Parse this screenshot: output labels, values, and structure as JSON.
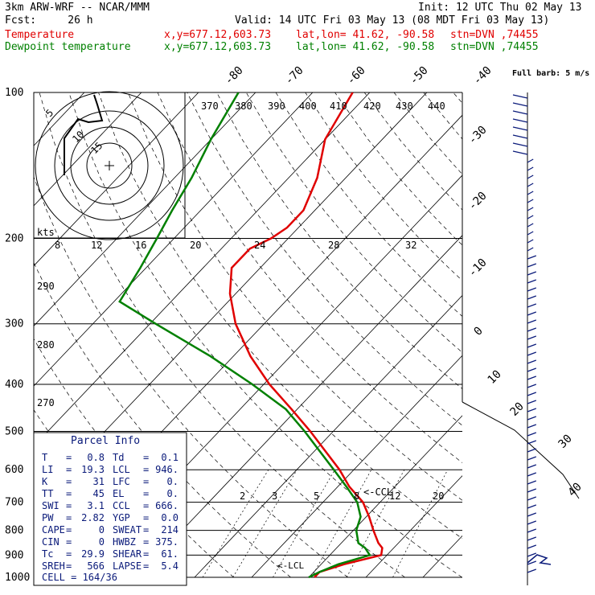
{
  "header": {
    "model": "3km ARW-WRF -- NCAR/MMM",
    "fcst_label": "Fcst:",
    "fcst_value": "26 h",
    "init": "Init: 12 UTC Thu 02 May 13",
    "valid": "Valid: 14 UTC Fri 03 May 13 (08 MDT Fri 03 May 13)",
    "temp_label": "Temperature",
    "dew_label": "Dewpoint temperature",
    "xy": "x,y=677.12,603.73",
    "latlon": "lat,lon= 41.62, -90.58",
    "stn": "stn=DVN ,74455"
  },
  "colors": {
    "temperature": "#e00000",
    "dewpoint": "#008000",
    "barbs": "#0a1a7a",
    "grid": "#000000",
    "dashed": "#000000"
  },
  "chart_data": {
    "type": "line",
    "title": "Skew-T log-P",
    "pressure_levels": [
      100,
      200,
      300,
      400,
      500,
      600,
      700,
      800,
      900,
      1000
    ],
    "isotherm_labels_top": [
      "-80",
      "-70",
      "-60",
      "-50",
      "-40"
    ],
    "isotherm_labels_right": [
      "-30",
      "-20",
      "-10",
      "0",
      "10",
      "20",
      "30",
      "40"
    ],
    "theta_labels": [
      "370",
      "380",
      "390",
      "400",
      "410",
      "420",
      "430",
      "440"
    ],
    "theta_left_labels": [
      "290",
      "280",
      "270"
    ],
    "hodo_speed_labels": [
      "8",
      "12",
      "16",
      "20",
      "24",
      "28",
      "32"
    ],
    "hodo_units": "kts",
    "hodo_ring_labels": [
      "5",
      "10",
      "15"
    ],
    "mixing_ratio_labels": [
      "2",
      "3",
      "5",
      "8",
      "12",
      "20"
    ],
    "barb_legend": "Full barb: 5 m/s",
    "ccl_marker": "<-CCL",
    "lcl_marker": "<-LCL",
    "series": [
      {
        "name": "Temperature",
        "pressure": [
          100,
          125,
          150,
          175,
          190,
          200,
          210,
          230,
          260,
          300,
          350,
          400,
          450,
          500,
          550,
          600,
          650,
          700,
          750,
          800,
          850,
          870,
          900,
          940,
          975,
          1000
        ],
        "temp_c": [
          -63,
          -60,
          -55,
          -52,
          -52,
          -53,
          -55,
          -55,
          -51,
          -45,
          -37,
          -29,
          -21,
          -14,
          -8,
          -2.5,
          2,
          7,
          10.5,
          13.5,
          16.5,
          18,
          19,
          14,
          11,
          11
        ]
      },
      {
        "name": "Dewpoint temperature",
        "pressure": [
          100,
          125,
          150,
          175,
          200,
          230,
          270,
          300,
          350,
          400,
          450,
          500,
          550,
          600,
          650,
          700,
          750,
          800,
          850,
          870,
          900,
          940,
          975,
          1000
        ],
        "temp_c": [
          -83,
          -80,
          -77,
          -75,
          -73,
          -71,
          -69,
          -59,
          -44,
          -32,
          -22,
          -15,
          -9,
          -3.5,
          1.5,
          6,
          9,
          10.5,
          13,
          15,
          17,
          13,
          11,
          10
        ]
      }
    ]
  },
  "parcel": {
    "title": "Parcel Info",
    "rows": [
      [
        "T",
        "=",
        "0.8",
        "Td",
        "=",
        "0.1"
      ],
      [
        "LI",
        "=",
        "19.3",
        "LCL",
        "=",
        "946."
      ],
      [
        "K",
        "=",
        "31",
        "LFC",
        "=",
        "0."
      ],
      [
        "TT",
        "=",
        "45",
        "EL",
        "=",
        "0."
      ],
      [
        "SWI",
        "=",
        "3.1",
        "CCL",
        "=",
        "666."
      ],
      [
        "PW",
        "=",
        "2.82",
        "YGP",
        "=",
        "0.0"
      ],
      [
        "CAPE",
        "=",
        "0",
        "SWEAT",
        "=",
        "214"
      ],
      [
        "CIN",
        "=",
        "0",
        "HWBZ",
        "=",
        "375."
      ],
      [
        "Tc",
        "=",
        "29.9",
        "SHEAR",
        "=",
        "61."
      ],
      [
        "SREH",
        "=",
        "566",
        "LAPSE",
        "=",
        "5.4"
      ]
    ],
    "cell": "CELL = 164/36"
  }
}
